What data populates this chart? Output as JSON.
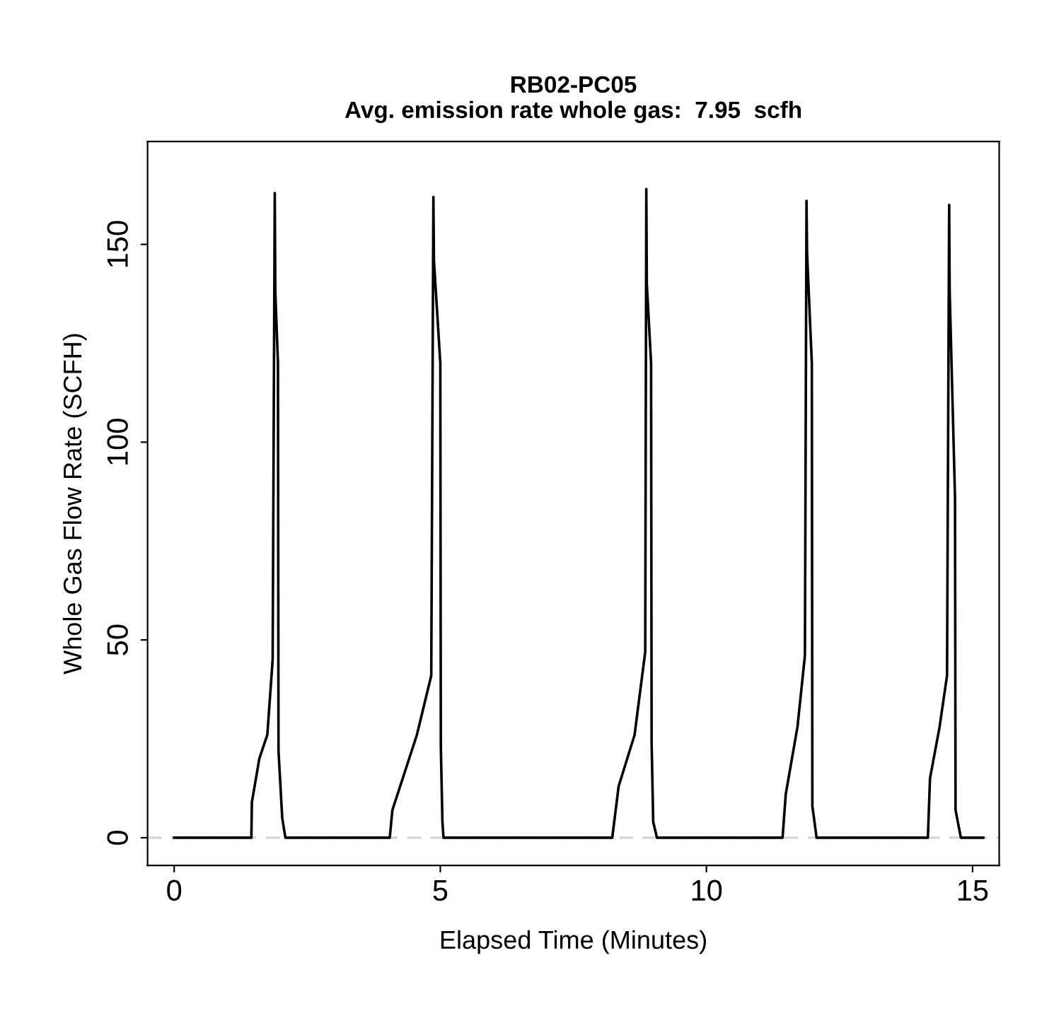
{
  "chart_data": {
    "type": "line",
    "title": "RB02-PC05\nAvg. emission rate whole gas:  7.95  scfh",
    "xlabel": "Elapsed Time (Minutes)",
    "ylabel": "Whole Gas Flow Rate (SCFH)",
    "series": [
      {
        "color": "#000000",
        "x": [
          0,
          1.45,
          1.46,
          1.6,
          1.75,
          1.85,
          1.89,
          1.9,
          1.95,
          1.96,
          2.03,
          2.09,
          4.05,
          4.1,
          4.56,
          4.83,
          4.87,
          4.88,
          5.0,
          5.01,
          5.04,
          5.06,
          8.23,
          8.35,
          8.65,
          8.85,
          8.87,
          8.88,
          8.96,
          8.97,
          9.0,
          9.07,
          11.43,
          11.49,
          11.71,
          11.85,
          11.88,
          11.89,
          11.98,
          11.99,
          12.07,
          14.16,
          14.2,
          14.38,
          14.52,
          14.56,
          14.57,
          14.67,
          14.68,
          14.78,
          15.2
        ],
        "values": [
          0,
          0,
          9,
          20,
          26,
          45,
          163,
          138,
          120,
          22,
          5,
          0,
          0,
          7,
          26,
          41,
          162,
          146,
          120,
          23,
          4,
          0,
          0,
          13,
          26,
          47,
          164,
          140,
          120,
          24,
          4,
          0,
          0,
          11,
          28,
          46,
          161,
          148,
          120,
          8,
          0,
          0,
          15,
          28,
          41,
          160,
          138,
          86,
          7,
          0,
          0
        ]
      }
    ],
    "xlim": [
      -0.5,
      15.5
    ],
    "ylim": [
      -7,
      176
    ],
    "xticks": [
      0,
      5,
      10,
      15
    ],
    "yticks": [
      0,
      50,
      100,
      150
    ],
    "ref_lines": [
      {
        "axis": "y",
        "value": 0,
        "color": "#d3d3d3",
        "line_style": "dashed"
      }
    ]
  }
}
